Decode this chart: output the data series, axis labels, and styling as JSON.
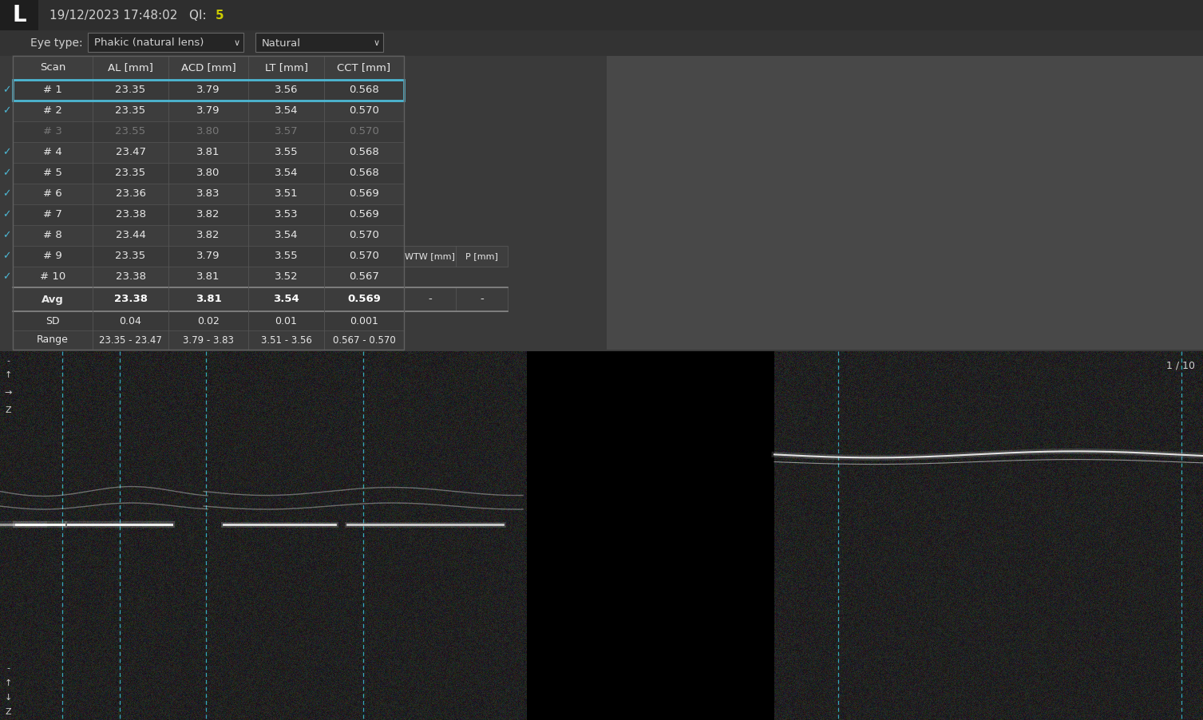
{
  "bg_color": "#3a3a3a",
  "header_bar_color": "#2e2e2e",
  "logo_bg": "#1e1e1e",
  "logo_text": "L",
  "header_text_color": "#d0d0d0",
  "header_datetime": "19/12/2023 17:48:02   QI: ",
  "header_qi": "5",
  "header_qi_color": "#cccc00",
  "eyetype_bar_color": "#333333",
  "eye_type_label": "Eye type:",
  "eye_type_val1": "Phakic (natural lens)",
  "eye_type_val2": "Natural",
  "dropdown_bg": "#252525",
  "dropdown_border": "#666666",
  "table_border_color": "#606060",
  "table_line_color": "#555555",
  "col_header_bg": "#3e3e3e",
  "row_even_bg": "#393939",
  "row_odd_bg": "#3d3d3d",
  "row_dim_color": "#777777",
  "text_white": "#e8e8e8",
  "text_bold": "#ffffff",
  "checkmark_color": "#4db8d4",
  "selected_border": "#4db8d4",
  "avg_bg": "#3c3c3c",
  "avg_sep_color": "#888888",
  "sd_bg": "#393939",
  "range_bg": "#3c3c3c",
  "extra_box_bg": "#3a3a3a",
  "extra_sep_color": "#666666",
  "gray_panel_bg": "#484848",
  "oct_bg": "#1a1a1a",
  "oct_noise_lo": 15,
  "oct_noise_hi": 50,
  "black_gap_color": "#000000",
  "cyan_line_color": "#3ab8cc",
  "scan_label": "1 / 10",
  "col_headers": [
    "Scan",
    "AL [mm]",
    "ACD [mm]",
    "LT [mm]",
    "CCT [mm]"
  ],
  "extra_col_headers": [
    "WTW [mm]",
    "P [mm]"
  ],
  "rows": [
    {
      "scan": "# 1",
      "AL": "23.35",
      "ACD": "3.79",
      "LT": "3.56",
      "CCT": "0.568",
      "selected": true,
      "checked": true,
      "dim": false
    },
    {
      "scan": "# 2",
      "AL": "23.35",
      "ACD": "3.79",
      "LT": "3.54",
      "CCT": "0.570",
      "selected": false,
      "checked": true,
      "dim": false
    },
    {
      "scan": "# 3",
      "AL": "23.55",
      "ACD": "3.80",
      "LT": "3.57",
      "CCT": "0.570",
      "selected": false,
      "checked": false,
      "dim": true
    },
    {
      "scan": "# 4",
      "AL": "23.47",
      "ACD": "3.81",
      "LT": "3.55",
      "CCT": "0.568",
      "selected": false,
      "checked": true,
      "dim": false
    },
    {
      "scan": "# 5",
      "AL": "23.35",
      "ACD": "3.80",
      "LT": "3.54",
      "CCT": "0.568",
      "selected": false,
      "checked": true,
      "dim": false
    },
    {
      "scan": "# 6",
      "AL": "23.36",
      "ACD": "3.83",
      "LT": "3.51",
      "CCT": "0.569",
      "selected": false,
      "checked": true,
      "dim": false
    },
    {
      "scan": "# 7",
      "AL": "23.38",
      "ACD": "3.82",
      "LT": "3.53",
      "CCT": "0.569",
      "selected": false,
      "checked": true,
      "dim": false
    },
    {
      "scan": "# 8",
      "AL": "23.44",
      "ACD": "3.82",
      "LT": "3.54",
      "CCT": "0.570",
      "selected": false,
      "checked": true,
      "dim": false
    },
    {
      "scan": "# 9",
      "AL": "23.35",
      "ACD": "3.79",
      "LT": "3.55",
      "CCT": "0.570",
      "selected": false,
      "checked": true,
      "dim": false
    },
    {
      "scan": "# 10",
      "AL": "23.38",
      "ACD": "3.81",
      "LT": "3.52",
      "CCT": "0.567",
      "selected": false,
      "checked": true,
      "dim": false
    }
  ],
  "avg_row": {
    "label": "Avg",
    "AL": "23.38",
    "ACD": "3.81",
    "LT": "3.54",
    "CCT": "0.569",
    "wtw": "-",
    "p": "-"
  },
  "sd_row": {
    "label": "SD",
    "AL": "0.04",
    "ACD": "0.02",
    "LT": "0.01",
    "CCT": "0.001"
  },
  "range_row": {
    "label": "Range",
    "AL": "23.35 - 23.47",
    "ACD": "3.79 - 3.83",
    "LT": "3.51 - 3.56",
    "CCT": "0.567 - 0.570"
  }
}
